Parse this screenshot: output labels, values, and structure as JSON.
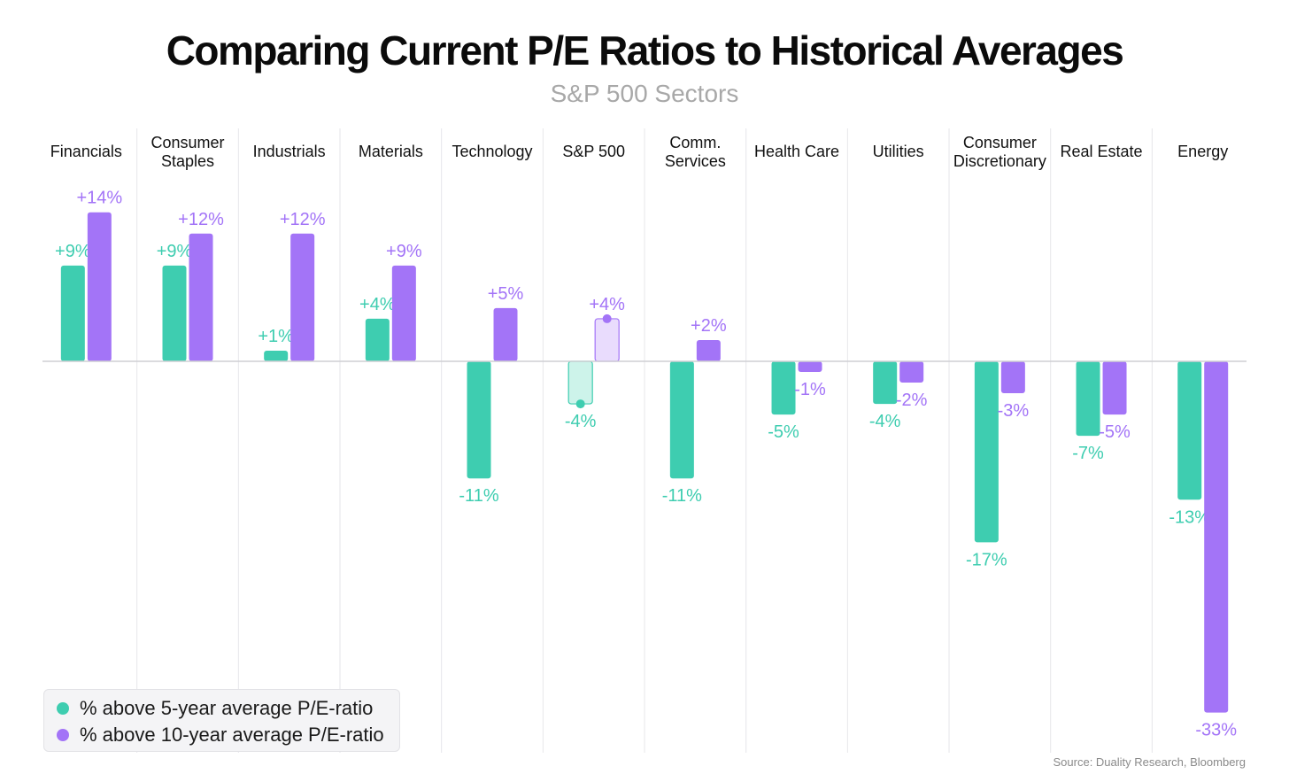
{
  "header": {
    "title": "Comparing Current P/E Ratios to Historical Averages",
    "subtitle": "S&P 500 Sectors"
  },
  "source": "Source: Duality Research, Bloomberg",
  "colors": {
    "five_year": "#3ecdb0",
    "ten_year": "#a374f7",
    "five_year_light": "#cdf3ea",
    "ten_year_light": "#e9dcfd",
    "gridline": "#e6e6ea",
    "baseline": "#cfcfd4"
  },
  "chart_data": {
    "type": "bar",
    "title": "Comparing Current P/E Ratios to Historical Averages",
    "subtitle": "S&P 500 Sectors",
    "categories": [
      [
        "Financials"
      ],
      [
        "Consumer",
        "Staples"
      ],
      [
        "Industrials"
      ],
      [
        "Materials"
      ],
      [
        "Technology"
      ],
      [
        "S&P 500"
      ],
      [
        "Comm.",
        "Services"
      ],
      [
        "Health Care"
      ],
      [
        "Utilities"
      ],
      [
        "Consumer",
        "Discretionary"
      ],
      [
        "Real Estate"
      ],
      [
        "Energy"
      ]
    ],
    "highlight_category_index": 5,
    "series": [
      {
        "name": "% above 5-year average P/E-ratio",
        "values": [
          9,
          9,
          1,
          4,
          -11,
          -4,
          -11,
          -5,
          -4,
          -17,
          -7,
          -13
        ],
        "labels": [
          "+9%",
          "+9%",
          "+1%",
          "+4%",
          "-11%",
          "-4%",
          "-11%",
          "-5%",
          "-4%",
          "-17%",
          "-7%",
          "-13%"
        ]
      },
      {
        "name": "% above 10-year average P/E-ratio",
        "values": [
          14,
          12,
          12,
          9,
          5,
          4,
          2,
          -1,
          -2,
          -3,
          -5,
          -33
        ],
        "labels": [
          "+14%",
          "+12%",
          "+12%",
          "+9%",
          "+5%",
          "+4%",
          "+2%",
          "-1%",
          "-2%",
          "-3%",
          "-5%",
          "-33%"
        ]
      }
    ],
    "xlabel": "",
    "ylabel": "",
    "ylim": [
      -33,
      14
    ],
    "grid": "vertical separators",
    "legend_position": "bottom-left"
  }
}
